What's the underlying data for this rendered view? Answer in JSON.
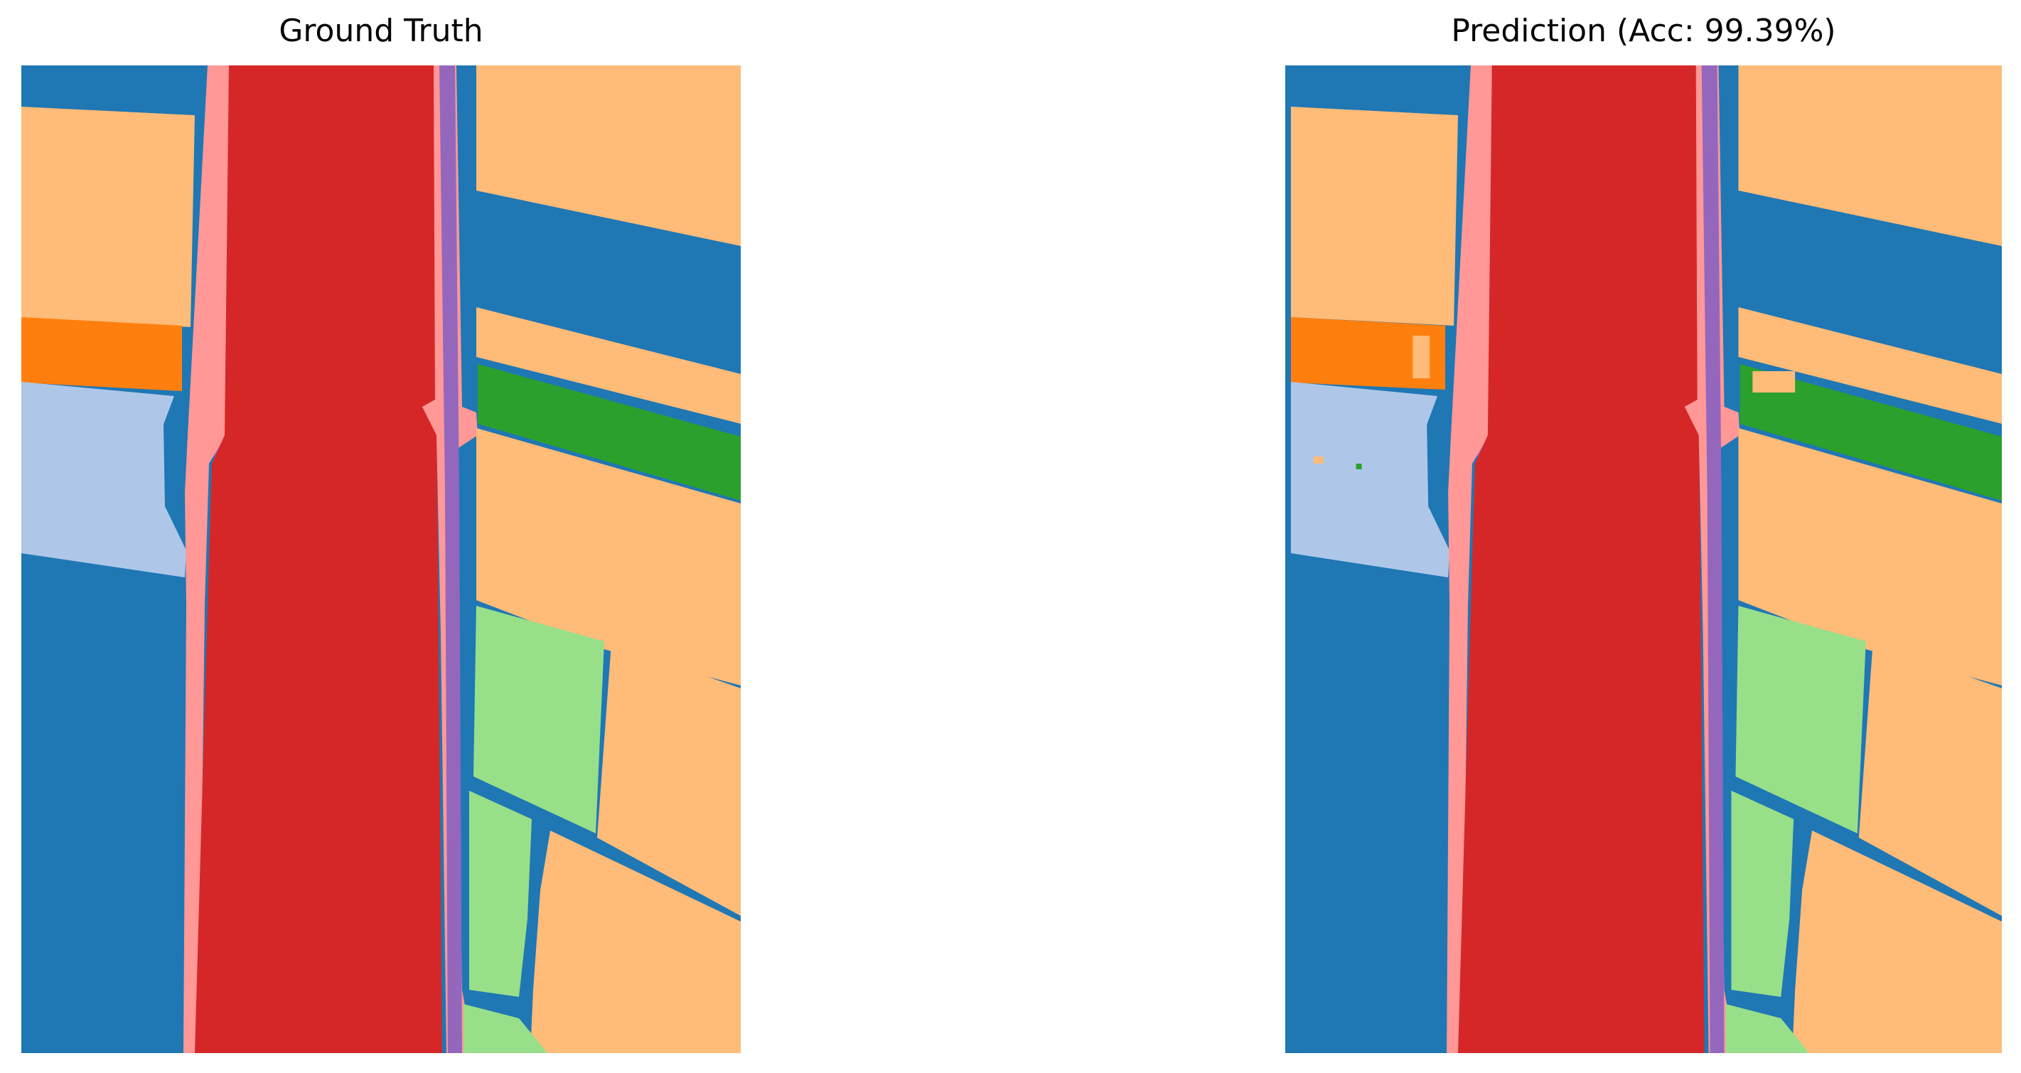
{
  "panels": [
    {
      "title": "Ground Truth"
    },
    {
      "title": "Prediction (Acc: 99.39%)"
    }
  ],
  "palette": {
    "background_blue": "#1f77b4",
    "river_red": "#d62728",
    "bank_pink": "#ff9896",
    "edge_purple": "#9467bd",
    "field_tan": "#ffbb78",
    "field_orange": "#ff7f0e",
    "field_lightblue": "#aec7e8",
    "field_green": "#2ca02c",
    "field_lightgreen": "#98df8a"
  }
}
